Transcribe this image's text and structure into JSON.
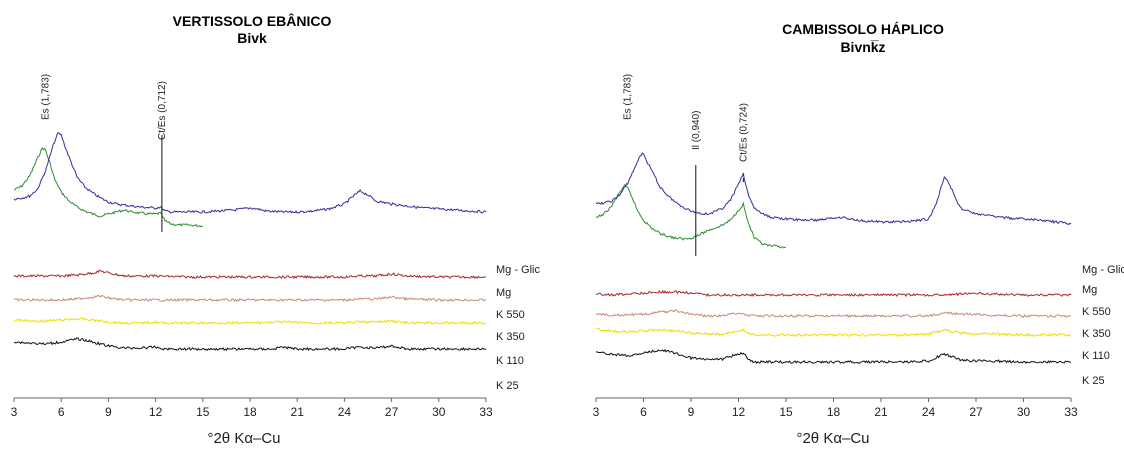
{
  "chart_data": [
    {
      "type": "line",
      "title": "VERTISSOLO EBÂNICO",
      "subtitle": "Bivk",
      "xlabel": "°2θ Kα–Cu",
      "ylabel": "",
      "xlim": [
        3,
        33
      ],
      "xticks": [
        "3",
        "6",
        "9",
        "12",
        "15",
        "18",
        "21",
        "24",
        "27",
        "30",
        "33"
      ],
      "grid": false,
      "legend": "labels at right end of each trace",
      "peak_labels": [
        {
          "text": "Es (1,783)",
          "x": 5.0
        },
        {
          "text": "Ct/Es (0,712)",
          "x": 12.4
        }
      ],
      "series": [
        {
          "name": "Mg - Glic",
          "color": "#2e8b2e",
          "x": [
            3,
            3.5,
            4,
            4.5,
            4.8,
            5,
            5.3,
            5.6,
            6,
            6.5,
            7,
            7.5,
            8,
            8.5,
            9,
            9.5,
            10,
            10.5,
            11,
            11.5,
            12,
            12.3,
            12.6,
            13,
            13.5,
            14,
            15
          ],
          "y": [
            40,
            44,
            54,
            72,
            82,
            80,
            66,
            50,
            38,
            29,
            23,
            19,
            16,
            14,
            16,
            18,
            20,
            18,
            17,
            16,
            16,
            17,
            9,
            6,
            5,
            5,
            4
          ]
        },
        {
          "name": "Mg",
          "color": "#2f2f9a",
          "x": [
            3,
            3.5,
            4,
            4.5,
            5,
            5.5,
            5.8,
            6,
            6.3,
            6.7,
            7,
            7.5,
            8,
            8.5,
            9,
            9.5,
            10,
            11,
            12,
            12.3,
            12.6,
            13,
            14,
            15,
            16,
            17,
            18,
            18.5,
            19,
            20,
            21,
            22,
            23,
            24,
            24.5,
            25,
            25.5,
            26,
            27,
            28,
            29,
            30,
            31,
            32,
            33
          ],
          "y": [
            14,
            15,
            17,
            24,
            42,
            68,
            80,
            78,
            64,
            48,
            36,
            26,
            20,
            15,
            11,
            9,
            8,
            6,
            5,
            6,
            2,
            1,
            1,
            1,
            2,
            3,
            5,
            4,
            2,
            1,
            1,
            2,
            4,
            9,
            16,
            22,
            18,
            12,
            9,
            7,
            5,
            4,
            3,
            2,
            1
          ]
        },
        {
          "name": "K 550",
          "color": "#a52a2a",
          "x": [
            3,
            4,
            5,
            6,
            7,
            8,
            8.5,
            9,
            10,
            11,
            12,
            14,
            16,
            18,
            20,
            22,
            24,
            25,
            26,
            27,
            28,
            30,
            32,
            33
          ],
          "y": [
            8,
            8,
            8,
            8,
            9,
            11,
            13,
            11,
            8,
            8,
            8,
            7,
            7,
            7,
            7,
            7,
            7,
            8,
            8,
            10,
            8,
            7,
            7,
            7
          ]
        },
        {
          "name": "K 350",
          "color": "#c58a7a",
          "x": [
            3,
            4,
            5,
            6,
            7,
            8,
            8.5,
            9,
            10,
            11,
            12,
            14,
            16,
            18,
            20,
            22,
            24,
            25,
            26,
            27,
            28,
            30,
            32,
            33
          ],
          "y": [
            6,
            6,
            6,
            6,
            7,
            9,
            10,
            8,
            6,
            6,
            6,
            6,
            6,
            6,
            6,
            6,
            6,
            7,
            7,
            9,
            7,
            6,
            6,
            6
          ]
        },
        {
          "name": "K 110",
          "color": "#e8e000",
          "x": [
            3,
            4,
            5,
            6,
            7,
            8,
            9,
            10,
            11,
            12,
            12.5,
            13,
            14,
            16,
            18,
            20,
            22,
            24,
            25,
            26,
            27,
            28,
            30,
            32,
            33
          ],
          "y": [
            10,
            9,
            9,
            10,
            11,
            10,
            8,
            7,
            7,
            8,
            7,
            7,
            7,
            7,
            7,
            8,
            7,
            7,
            8,
            8,
            9,
            7,
            7,
            7,
            7
          ]
        },
        {
          "name": "K 25",
          "color": "#111111",
          "x": [
            3,
            4,
            5,
            6,
            7,
            7.5,
            8,
            9,
            10,
            11,
            12,
            12.5,
            13,
            14,
            16,
            18,
            19.5,
            20,
            21,
            22,
            24,
            25,
            26,
            27,
            28,
            30,
            32,
            33
          ],
          "y": [
            12,
            11,
            10,
            12,
            15,
            14,
            12,
            8,
            6,
            6,
            7,
            5,
            5,
            5,
            5,
            5,
            5,
            7,
            5,
            5,
            5,
            7,
            6,
            8,
            5,
            5,
            5,
            5
          ]
        }
      ]
    },
    {
      "type": "line",
      "title": "CAMBISSOLO HÁPLICO",
      "subtitle": "Bivnk̅z",
      "xlabel": "°2θ Kα–Cu",
      "ylabel": "",
      "xlim": [
        3,
        33
      ],
      "xticks": [
        "3",
        "6",
        "9",
        "12",
        "15",
        "18",
        "21",
        "24",
        "27",
        "30",
        "33"
      ],
      "grid": false,
      "legend": "labels at right end of each trace",
      "peak_labels": [
        {
          "text": "Es (1,783)",
          "x": 5.0
        },
        {
          "text": "Il (0,940)",
          "x": 9.3
        },
        {
          "text": "Ct/Es (0,724)",
          "x": 12.3
        }
      ],
      "series": [
        {
          "name": "Mg - Glic",
          "color": "#2e8b2e",
          "x": [
            3,
            3.5,
            4,
            4.5,
            4.8,
            5,
            5.3,
            5.6,
            6,
            6.5,
            7,
            7.5,
            8,
            8.5,
            9,
            9.5,
            10,
            10.5,
            11,
            11.5,
            12,
            12.3,
            12.6,
            13,
            13.5,
            14,
            15
          ],
          "y": [
            40,
            44,
            52,
            66,
            72,
            70,
            60,
            48,
            38,
            30,
            25,
            22,
            20,
            19,
            20,
            23,
            27,
            30,
            33,
            38,
            48,
            54,
            36,
            20,
            14,
            12,
            11
          ]
        },
        {
          "name": "Mg",
          "color": "#2f2f9a",
          "x": [
            3,
            3.5,
            4,
            4.5,
            5,
            5.5,
            5.8,
            6,
            6.3,
            6.7,
            7,
            7.5,
            8,
            8.5,
            9,
            9.5,
            10,
            10.5,
            11,
            11.5,
            12,
            12.3,
            12.6,
            13,
            13.5,
            14,
            15,
            16,
            17,
            18,
            18.5,
            19,
            20,
            21,
            22,
            23,
            24,
            24.5,
            25,
            25.5,
            26,
            27,
            28,
            29,
            30,
            31,
            32,
            33
          ],
          "y": [
            24,
            25,
            27,
            33,
            45,
            62,
            73,
            74,
            64,
            52,
            42,
            33,
            26,
            21,
            17,
            15,
            14,
            16,
            20,
            28,
            44,
            54,
            34,
            20,
            14,
            11,
            9,
            8,
            8,
            10,
            11,
            9,
            7,
            6,
            6,
            7,
            9,
            24,
            52,
            38,
            20,
            14,
            12,
            10,
            9,
            8,
            6,
            4
          ]
        },
        {
          "name": "K 550",
          "color": "#a52a2a",
          "x": [
            3,
            4,
            5,
            6,
            7,
            8,
            9,
            10,
            11,
            12,
            14,
            16,
            18,
            20,
            22,
            24,
            25,
            26,
            27,
            28,
            30,
            32,
            33
          ],
          "y": [
            10,
            9,
            10,
            11,
            12,
            12,
            11,
            9,
            9,
            9,
            9,
            9,
            9,
            9,
            9,
            9,
            9,
            10,
            11,
            10,
            9,
            9,
            9
          ]
        },
        {
          "name": "K 350",
          "color": "#c58a7a",
          "x": [
            3,
            4,
            5,
            6,
            7,
            8,
            8.5,
            9,
            10,
            11,
            12,
            12.5,
            13,
            14,
            16,
            18,
            20,
            22,
            24,
            25,
            26,
            27,
            28,
            30,
            32,
            33
          ],
          "y": [
            9,
            8,
            8,
            9,
            11,
            12,
            11,
            9,
            7,
            7,
            10,
            8,
            7,
            7,
            7,
            7,
            7,
            7,
            7,
            10,
            9,
            9,
            8,
            7,
            7,
            7
          ]
        },
        {
          "name": "K 110",
          "color": "#e8e000",
          "x": [
            3,
            4,
            5,
            6,
            7,
            8,
            9,
            10,
            11,
            12,
            12.3,
            12.7,
            13,
            14,
            16,
            18,
            20,
            22,
            24,
            25,
            26,
            27,
            28,
            30,
            32,
            33
          ],
          "y": [
            13,
            11,
            10,
            11,
            12,
            11,
            9,
            8,
            8,
            11,
            12,
            8,
            7,
            7,
            7,
            7,
            7,
            7,
            8,
            12,
            9,
            8,
            8,
            7,
            7,
            7
          ]
        },
        {
          "name": "K 25",
          "color": "#111111",
          "x": [
            3,
            4,
            5,
            6,
            7,
            8,
            9,
            10,
            11,
            12,
            12.3,
            12.7,
            13,
            14,
            16,
            18,
            20,
            22,
            24,
            25,
            26,
            27,
            28,
            30,
            32,
            33
          ],
          "y": [
            16,
            14,
            12,
            15,
            18,
            15,
            10,
            8,
            9,
            14,
            15,
            8,
            6,
            6,
            6,
            6,
            6,
            6,
            7,
            14,
            8,
            7,
            7,
            6,
            6,
            6
          ]
        }
      ]
    }
  ]
}
